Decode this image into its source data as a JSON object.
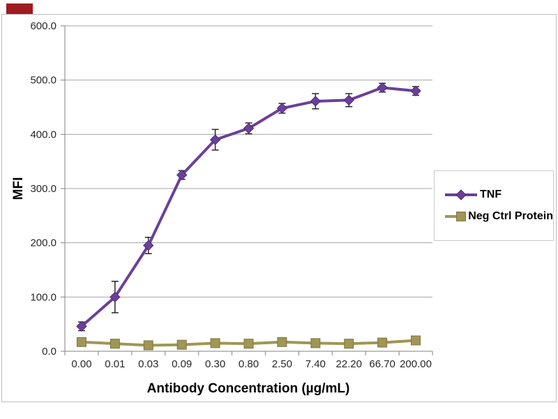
{
  "watermark": {
    "color": "#9e1b20"
  },
  "chart_data": {
    "type": "line",
    "title": "",
    "xlabel": "Antibody Concentration (µg/mL)",
    "ylabel": "MFI",
    "categories": [
      "0.00",
      "0.01",
      "0.03",
      "0.09",
      "0.30",
      "0.80",
      "2.50",
      "7.40",
      "22.20",
      "66.70",
      "200.00"
    ],
    "series": [
      {
        "name": "TNF",
        "color": "#6a4099",
        "edge": "#4e2d79",
        "marker": "diamond",
        "values": [
          46,
          100,
          195,
          325,
          390,
          411,
          448,
          461,
          463,
          486,
          480
        ],
        "errors": [
          8,
          29,
          15,
          8,
          19,
          10,
          9,
          14,
          12,
          8,
          8
        ]
      },
      {
        "name": "Neg Ctrl Protein",
        "color": "#a09655",
        "edge": "#7e7640",
        "marker": "square",
        "values": [
          17,
          14,
          11,
          12,
          15,
          14,
          17,
          15,
          14,
          16,
          20
        ],
        "errors": [
          0,
          0,
          0,
          0,
          0,
          0,
          0,
          0,
          0,
          0,
          0
        ]
      }
    ],
    "ylim": [
      0,
      600
    ],
    "ytick_step": 100,
    "grid": true,
    "legend_position": "right",
    "gridline_color": "#a6a6a6",
    "axis_color": "#808080",
    "errorbar_color": "#262626"
  }
}
